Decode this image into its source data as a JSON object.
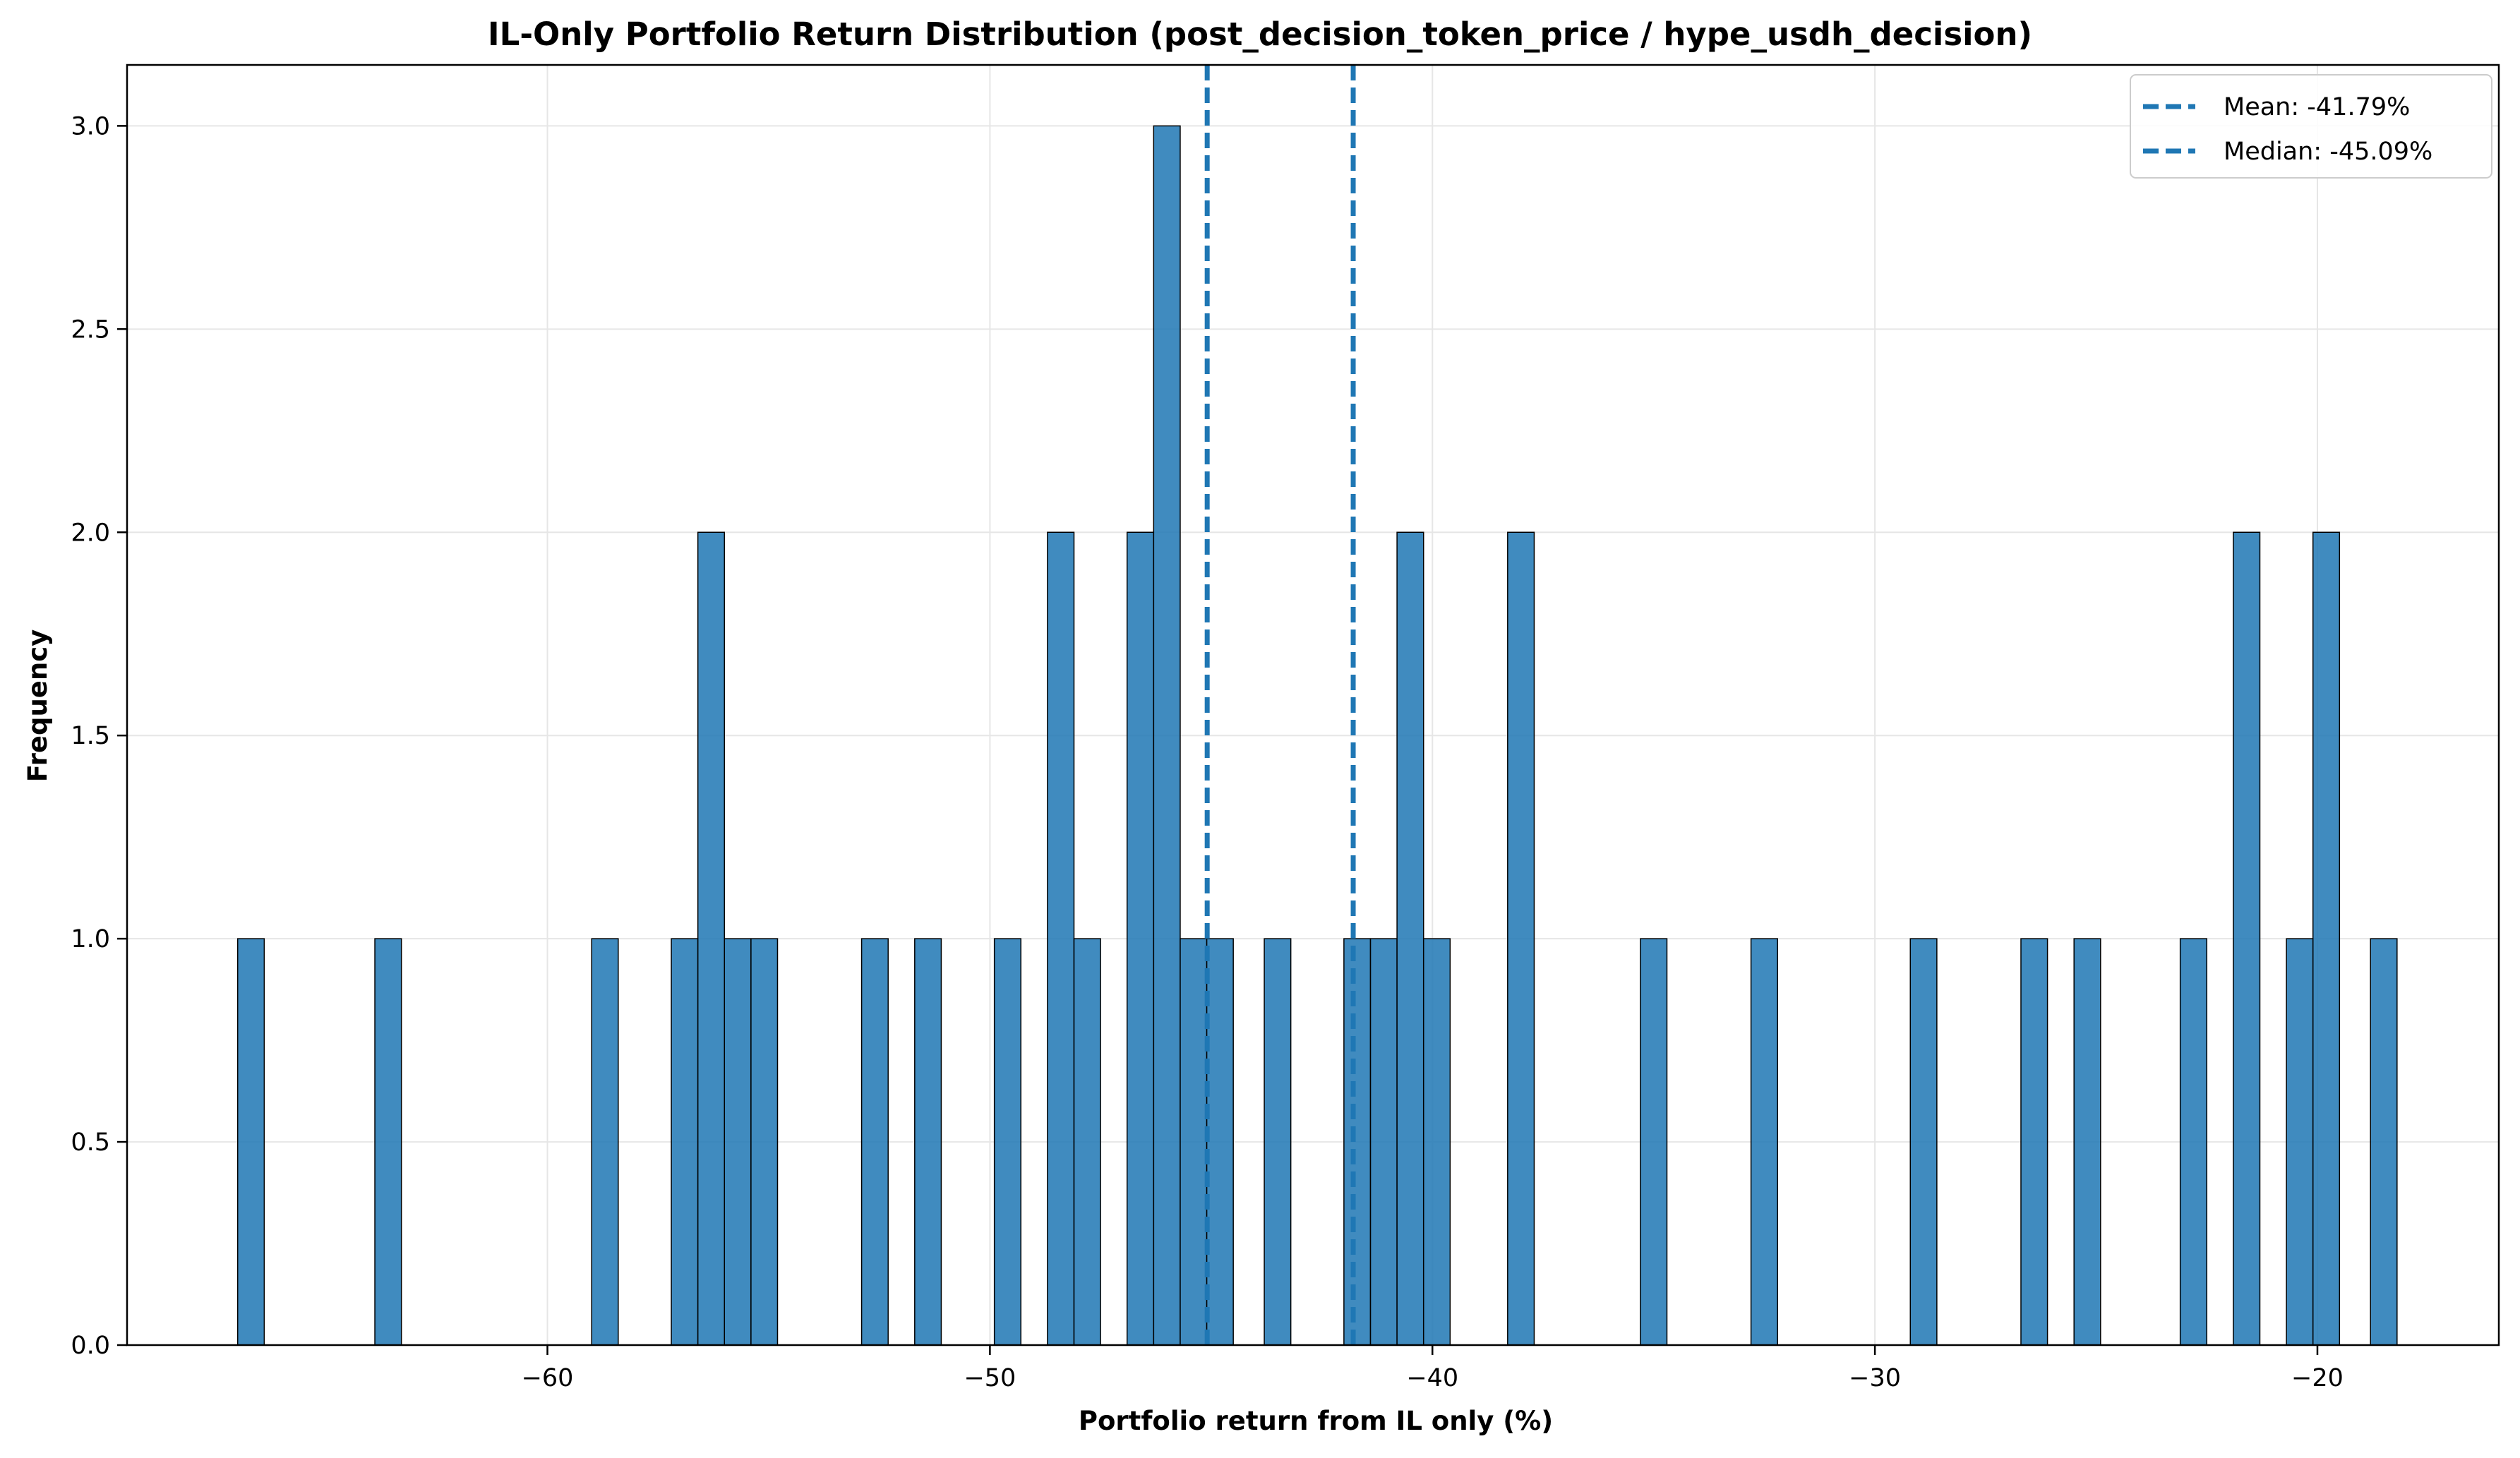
{
  "chart_data": {
    "type": "histogram",
    "title": "IL-Only Portfolio Return Distribution (post_decision_token_price / hype_usdh_decision)",
    "xlabel": "Portfolio return from IL only (%)",
    "ylabel": "Frequency",
    "xlim": [
      -69.5,
      -15.9
    ],
    "ylim": [
      0,
      3.15
    ],
    "x_ticks": [
      -60,
      -50,
      -40,
      -30,
      -20
    ],
    "x_tick_labels": [
      "−60",
      "−50",
      "−40",
      "−30",
      "−20"
    ],
    "y_ticks": [
      0.0,
      0.5,
      1.0,
      1.5,
      2.0,
      2.5,
      3.0
    ],
    "y_tick_labels": [
      "0.0",
      "0.5",
      "1.0",
      "1.5",
      "2.0",
      "2.5",
      "3.0"
    ],
    "grid": true,
    "bar_color": "#1f77b4",
    "bar_edge_color": "#000000",
    "bar_opacity": 0.85,
    "bins": [
      {
        "x0": -67.0,
        "x1": -66.4,
        "count": 1
      },
      {
        "x0": -63.9,
        "x1": -63.3,
        "count": 1
      },
      {
        "x0": -59.0,
        "x1": -58.4,
        "count": 1
      },
      {
        "x0": -57.2,
        "x1": -56.6,
        "count": 1
      },
      {
        "x0": -56.6,
        "x1": -56.0,
        "count": 2
      },
      {
        "x0": -56.0,
        "x1": -55.4,
        "count": 1
      },
      {
        "x0": -55.4,
        "x1": -54.8,
        "count": 1
      },
      {
        "x0": -52.9,
        "x1": -52.3,
        "count": 1
      },
      {
        "x0": -51.7,
        "x1": -51.1,
        "count": 1
      },
      {
        "x0": -49.9,
        "x1": -49.3,
        "count": 1
      },
      {
        "x0": -48.7,
        "x1": -48.1,
        "count": 2
      },
      {
        "x0": -48.1,
        "x1": -47.5,
        "count": 1
      },
      {
        "x0": -46.9,
        "x1": -46.3,
        "count": 2
      },
      {
        "x0": -46.3,
        "x1": -45.7,
        "count": 3
      },
      {
        "x0": -45.7,
        "x1": -45.1,
        "count": 1
      },
      {
        "x0": -45.1,
        "x1": -44.5,
        "count": 1
      },
      {
        "x0": -43.8,
        "x1": -43.2,
        "count": 1
      },
      {
        "x0": -42.0,
        "x1": -41.4,
        "count": 1
      },
      {
        "x0": -41.4,
        "x1": -40.8,
        "count": 1
      },
      {
        "x0": -40.8,
        "x1": -40.2,
        "count": 2
      },
      {
        "x0": -40.2,
        "x1": -39.6,
        "count": 1
      },
      {
        "x0": -38.3,
        "x1": -37.7,
        "count": 2
      },
      {
        "x0": -35.3,
        "x1": -34.7,
        "count": 1
      },
      {
        "x0": -32.8,
        "x1": -32.2,
        "count": 1
      },
      {
        "x0": -29.2,
        "x1": -28.6,
        "count": 1
      },
      {
        "x0": -26.7,
        "x1": -26.1,
        "count": 1
      },
      {
        "x0": -25.5,
        "x1": -24.9,
        "count": 1
      },
      {
        "x0": -23.1,
        "x1": -22.5,
        "count": 1
      },
      {
        "x0": -21.9,
        "x1": -21.3,
        "count": 2
      },
      {
        "x0": -20.7,
        "x1": -20.1,
        "count": 1
      },
      {
        "x0": -20.1,
        "x1": -19.5,
        "count": 2
      },
      {
        "x0": -18.8,
        "x1": -18.2,
        "count": 1
      }
    ],
    "reference_lines": [
      {
        "name": "Mean: -41.79%",
        "x": -41.79,
        "color": "#1f77b4",
        "style": "dashed"
      },
      {
        "name": "Median: -45.09%",
        "x": -45.09,
        "color": "#1f77b4",
        "style": "dashed"
      }
    ],
    "legend": {
      "placement": "top-right",
      "entries": [
        "Mean: -41.79%",
        "Median: -45.09%"
      ]
    }
  }
}
